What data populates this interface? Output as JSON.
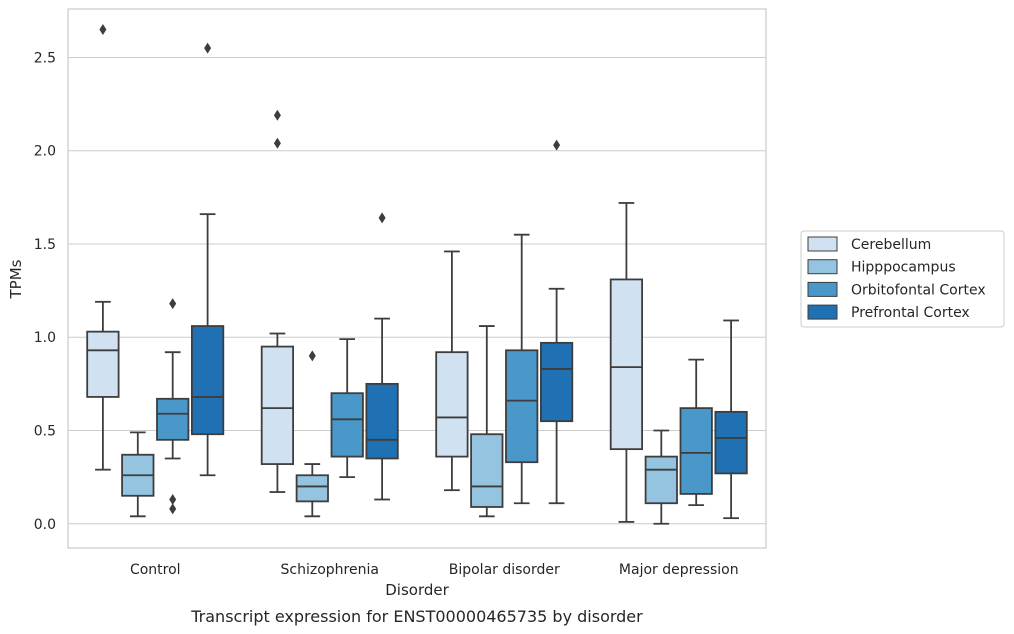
{
  "chart_data": {
    "type": "box",
    "title": "",
    "caption": "Transcript expression for ENST00000465735 by disorder",
    "xlabel": "Disorder",
    "ylabel": "TPMs",
    "ylim": [
      -0.13,
      2.76
    ],
    "yticks": [
      "0.0",
      "0.5",
      "1.0",
      "1.5",
      "2.0",
      "2.5"
    ],
    "ytick_values": [
      0.0,
      0.5,
      1.0,
      1.5,
      2.0,
      2.5
    ],
    "grid": "horizontal",
    "legend_position": "right",
    "categories": [
      "Control",
      "Schizophrenia",
      "Bipolar disorder",
      "Major depression"
    ],
    "series": [
      {
        "name": "Cerebellum",
        "color": "#d0e1f2",
        "boxes": [
          {
            "min": 0.29,
            "q1": 0.68,
            "median": 0.93,
            "q3": 1.03,
            "max": 1.19,
            "outliers": [
              2.65
            ]
          },
          {
            "min": 0.17,
            "q1": 0.32,
            "median": 0.62,
            "q3": 0.95,
            "max": 1.02,
            "outliers": [
              2.04,
              2.19
            ]
          },
          {
            "min": 0.18,
            "q1": 0.36,
            "median": 0.57,
            "q3": 0.92,
            "max": 1.46,
            "outliers": []
          },
          {
            "min": 0.01,
            "q1": 0.4,
            "median": 0.84,
            "q3": 1.31,
            "max": 1.72,
            "outliers": []
          }
        ]
      },
      {
        "name": "Hipppocampus",
        "color": "#94c4df",
        "boxes": [
          {
            "min": 0.04,
            "q1": 0.15,
            "median": 0.26,
            "q3": 0.37,
            "max": 0.49,
            "outliers": []
          },
          {
            "min": 0.04,
            "q1": 0.12,
            "median": 0.2,
            "q3": 0.26,
            "max": 0.32,
            "outliers": [
              0.9
            ]
          },
          {
            "min": 0.04,
            "q1": 0.09,
            "median": 0.2,
            "q3": 0.48,
            "max": 1.06,
            "outliers": []
          },
          {
            "min": 0.0,
            "q1": 0.11,
            "median": 0.29,
            "q3": 0.36,
            "max": 0.5,
            "outliers": []
          }
        ]
      },
      {
        "name": "Orbitofontal Cortex",
        "color": "#4a98c9",
        "boxes": [
          {
            "min": 0.35,
            "q1": 0.45,
            "median": 0.59,
            "q3": 0.67,
            "max": 0.92,
            "outliers": [
              1.18,
              0.13,
              0.08
            ]
          },
          {
            "min": 0.25,
            "q1": 0.36,
            "median": 0.56,
            "q3": 0.7,
            "max": 0.99,
            "outliers": []
          },
          {
            "min": 0.11,
            "q1": 0.33,
            "median": 0.66,
            "q3": 0.93,
            "max": 1.55,
            "outliers": []
          },
          {
            "min": 0.1,
            "q1": 0.16,
            "median": 0.38,
            "q3": 0.62,
            "max": 0.88,
            "outliers": []
          }
        ]
      },
      {
        "name": "Prefrontal Cortex",
        "color": "#2070b4",
        "boxes": [
          {
            "min": 0.26,
            "q1": 0.48,
            "median": 0.68,
            "q3": 1.06,
            "max": 1.66,
            "outliers": [
              2.55
            ]
          },
          {
            "min": 0.13,
            "q1": 0.35,
            "median": 0.45,
            "q3": 0.75,
            "max": 1.1,
            "outliers": [
              1.64
            ]
          },
          {
            "min": 0.11,
            "q1": 0.55,
            "median": 0.83,
            "q3": 0.97,
            "max": 1.26,
            "outliers": [
              2.03
            ]
          },
          {
            "min": 0.03,
            "q1": 0.27,
            "median": 0.46,
            "q3": 0.6,
            "max": 1.09,
            "outliers": []
          }
        ]
      }
    ]
  }
}
